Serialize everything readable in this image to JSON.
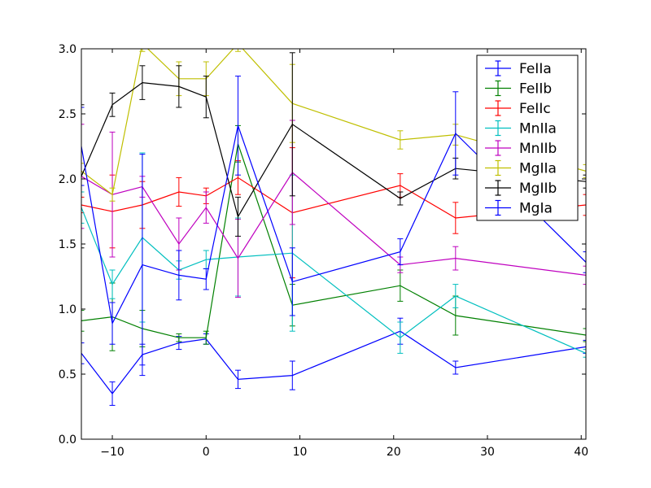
{
  "chart_data": {
    "type": "line",
    "title": "",
    "xlabel": "",
    "ylabel": "",
    "xlim": [
      -13.3,
      40.5
    ],
    "ylim": [
      0.0,
      3.0
    ],
    "xticks": [
      -10,
      0,
      10,
      20,
      30,
      40
    ],
    "xtick_labels": [
      "−10",
      "0",
      "10",
      "20",
      "30",
      "40"
    ],
    "yticks": [
      0.0,
      0.5,
      1.0,
      1.5,
      2.0,
      2.5,
      3.0
    ],
    "ytick_labels": [
      "0.0",
      "0.5",
      "1.0",
      "1.5",
      "2.0",
      "2.5",
      "3.0"
    ],
    "grid": false,
    "error_bars": true,
    "legend_position": "top-right",
    "x": [
      -13.3,
      -10,
      -6.8,
      -2.9,
      0,
      3.4,
      9.2,
      20.7,
      26.6,
      40.5
    ],
    "series": [
      {
        "name": "FeIIa",
        "color": "#0000ff",
        "values": [
          0.66,
          0.35,
          0.65,
          0.74,
          0.77,
          0.46,
          0.49,
          0.83,
          0.55,
          0.71
        ],
        "errors": [
          0.08,
          0.09,
          0.08,
          0.05,
          0.04,
          0.07,
          0.11,
          0.1,
          0.05,
          0.05
        ]
      },
      {
        "name": "FeIIb",
        "color": "#008000",
        "values": [
          0.91,
          0.94,
          0.85,
          0.78,
          0.78,
          2.27,
          1.03,
          1.18,
          0.95,
          0.8
        ],
        "errors": [
          0.08,
          0.26,
          0.14,
          0.03,
          0.05,
          0.14,
          0.16,
          0.12,
          0.15,
          0.05
        ]
      },
      {
        "name": "FeIIc",
        "color": "#ff0000",
        "values": [
          1.8,
          1.75,
          1.8,
          1.9,
          1.87,
          2.01,
          1.74,
          1.95,
          1.7,
          1.8
        ],
        "errors": [
          0.06,
          0.28,
          0.18,
          0.11,
          0.06,
          0.13,
          0.5,
          0.09,
          0.12,
          0.08
        ]
      },
      {
        "name": "MnIIa",
        "color": "#00bfbf",
        "values": [
          1.78,
          1.19,
          1.55,
          1.3,
          1.38,
          1.4,
          1.43,
          0.78,
          1.1,
          0.66
        ],
        "errors": [
          0.12,
          0.11,
          0.65,
          0.07,
          0.07,
          0.3,
          0.6,
          0.12,
          0.09,
          0.03
        ]
      },
      {
        "name": "MnIIb",
        "color": "#bf00bf",
        "values": [
          2.02,
          1.88,
          1.94,
          1.5,
          1.78,
          1.39,
          2.05,
          1.34,
          1.39,
          1.26
        ],
        "errors": [
          0.4,
          0.48,
          0.08,
          0.2,
          0.12,
          0.3,
          0.4,
          0.06,
          0.09,
          0.07
        ]
      },
      {
        "name": "MgIIa",
        "color": "#bfbf00",
        "values": [
          2.06,
          1.88,
          3.04,
          2.77,
          2.77,
          3.04,
          2.58,
          2.3,
          2.34,
          2.06
        ],
        "errors": [
          0.06,
          0.05,
          0.06,
          0.13,
          0.13,
          0.06,
          0.3,
          0.07,
          0.08,
          0.05
        ]
      },
      {
        "name": "MgIIb",
        "color": "#000000",
        "values": [
          2.02,
          2.57,
          2.74,
          2.71,
          2.63,
          1.71,
          2.42,
          1.85,
          2.08,
          1.98
        ],
        "errors": [
          0.55,
          0.09,
          0.13,
          0.16,
          0.16,
          0.15,
          0.55,
          0.05,
          0.08,
          0.05
        ]
      },
      {
        "name": "MgIa",
        "color": "#0000ff",
        "values": [
          2.25,
          0.89,
          1.34,
          1.26,
          1.23,
          2.41,
          1.21,
          1.44,
          2.35,
          1.36
        ],
        "errors": [
          0.3,
          0.16,
          0.85,
          0.19,
          0.08,
          0.38,
          0.26,
          0.1,
          0.32,
          0.08
        ]
      }
    ]
  }
}
